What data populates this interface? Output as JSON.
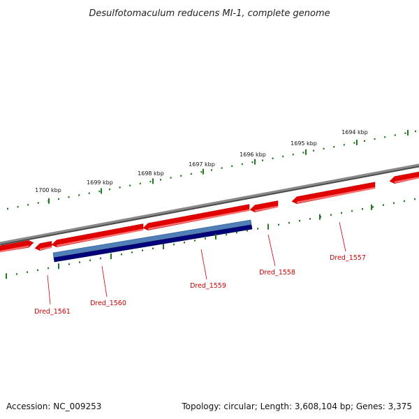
{
  "title": "Desulfotomaculum reducens MI-1, complete genome",
  "scale_labels": [
    "1700 kbp",
    "1699 kbp",
    "1698 kbp",
    "1697 kbp",
    "1696 kbp",
    "1695 kbp",
    "1694 kbp"
  ],
  "gene_labels": [
    "Dred_1561",
    "Dred_1560",
    "Dred_1559",
    "Dred_1558",
    "Dred_1557"
  ],
  "footer": {
    "accession": "Accession: NC_009253",
    "topology": "Topology: circular; Length: 3,608,104 bp; Genes: 3,375"
  },
  "colors": {
    "gene_forward": "#e00000",
    "gene_highlight": "#ff7070",
    "gene_label": "#cc0000",
    "backbone": "#808080",
    "tick": "#1e7a1e",
    "blast_light": "#5080b8",
    "blast_dark": "#000080"
  }
}
